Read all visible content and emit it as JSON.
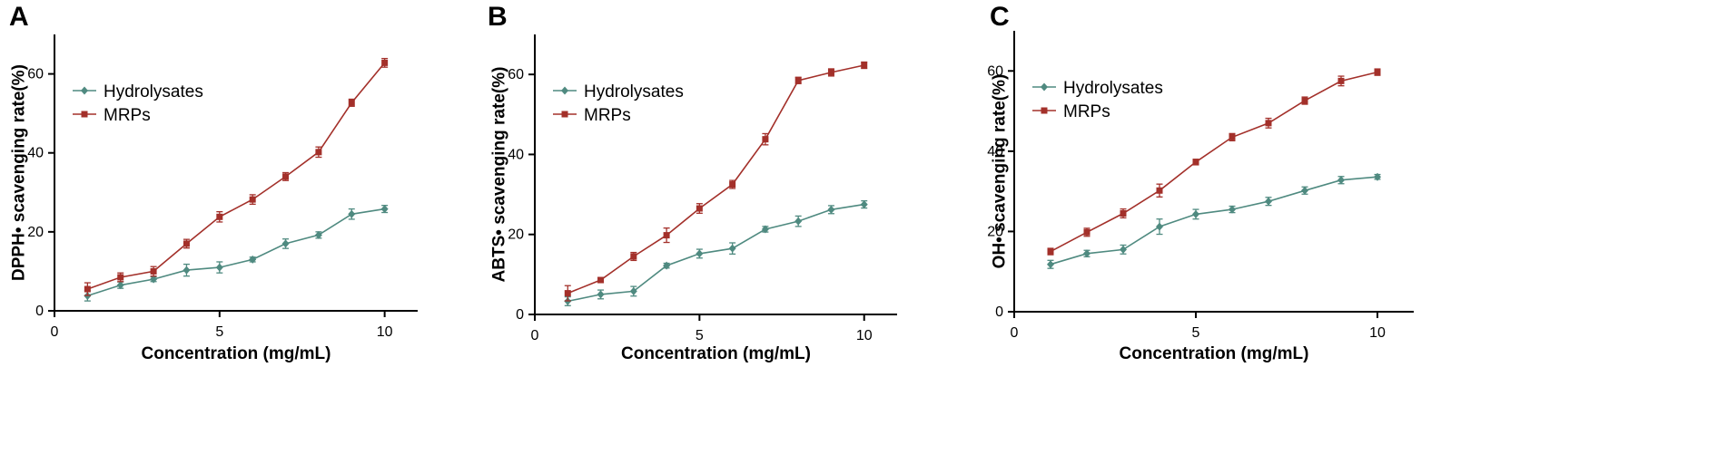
{
  "chart_data": [
    {
      "type": "line",
      "panel": "A",
      "xlabel": "Concentration (mg/mL)",
      "ylabel": "DPPH• scavenging rate(%)",
      "xlim": [
        0,
        11
      ],
      "ylim": [
        0,
        70
      ],
      "xticks": [
        0,
        5,
        10
      ],
      "yticks": [
        0,
        20,
        40,
        60
      ],
      "legend_position": "top-left",
      "x": [
        1,
        2,
        3,
        4,
        5,
        6,
        7,
        8,
        9,
        10
      ],
      "series": [
        {
          "name": "Hydrolysates",
          "marker": "diamond",
          "color": "#4f8a80",
          "values": [
            3.8,
            6.5,
            8.0,
            10.3,
            11.0,
            13.0,
            17.0,
            19.2,
            24.5,
            25.8
          ],
          "errors": [
            1.3,
            0.8,
            0.6,
            1.5,
            1.4,
            0.6,
            1.2,
            0.8,
            1.3,
            0.9
          ]
        },
        {
          "name": "MRPs",
          "marker": "square",
          "color": "#a3302a",
          "values": [
            5.5,
            8.5,
            10.0,
            17.0,
            23.8,
            28.2,
            34.0,
            40.2,
            52.7,
            62.8
          ],
          "errors": [
            1.6,
            1.1,
            1.2,
            1.1,
            1.3,
            1.2,
            1.0,
            1.3,
            0.9,
            1.1
          ]
        }
      ]
    },
    {
      "type": "line",
      "panel": "B",
      "xlabel": "Concentration (mg/mL)",
      "ylabel": "ABTS• scavenging rate(%)",
      "xlim": [
        0,
        11
      ],
      "ylim": [
        0,
        70
      ],
      "xticks": [
        0,
        5,
        10
      ],
      "yticks": [
        0,
        20,
        40,
        60
      ],
      "legend_position": "top-left",
      "x": [
        1,
        2,
        3,
        4,
        5,
        6,
        7,
        8,
        9,
        10
      ],
      "series": [
        {
          "name": "Hydrolysates",
          "marker": "diamond",
          "color": "#4f8a80",
          "values": [
            3.3,
            5.0,
            5.8,
            12.2,
            15.2,
            16.5,
            21.3,
            23.3,
            26.2,
            27.5
          ],
          "errors": [
            1.1,
            1.1,
            1.2,
            0.6,
            1.1,
            1.4,
            0.7,
            1.3,
            1.0,
            0.9
          ]
        },
        {
          "name": "MRPs",
          "marker": "square",
          "color": "#a3302a",
          "values": [
            5.3,
            8.6,
            14.5,
            19.8,
            26.5,
            32.5,
            43.8,
            58.5,
            60.5,
            62.3
          ],
          "errors": [
            1.9,
            0.6,
            1.0,
            1.8,
            1.2,
            1.0,
            1.4,
            0.8,
            0.9,
            0.8
          ]
        }
      ]
    },
    {
      "type": "line",
      "panel": "C",
      "xlabel": "Concentration (mg/mL)",
      "ylabel": "OH• scavenging rate(%)",
      "xlim": [
        0,
        11
      ],
      "ylim": [
        0,
        70
      ],
      "xticks": [
        0,
        5,
        10
      ],
      "yticks": [
        0,
        20,
        40,
        60
      ],
      "legend_position": "top-left",
      "x": [
        1,
        2,
        3,
        4,
        5,
        6,
        7,
        8,
        9,
        10
      ],
      "series": [
        {
          "name": "Hydrolysates",
          "marker": "diamond",
          "color": "#4f8a80",
          "values": [
            11.8,
            14.5,
            15.5,
            21.2,
            24.3,
            25.5,
            27.5,
            30.2,
            32.8,
            33.6
          ],
          "errors": [
            1.0,
            0.8,
            1.1,
            1.9,
            1.2,
            0.8,
            1.0,
            0.9,
            0.9,
            0.6
          ]
        },
        {
          "name": "MRPs",
          "marker": "square",
          "color": "#a3302a",
          "values": [
            15.0,
            19.8,
            24.5,
            30.2,
            37.3,
            43.5,
            47.0,
            52.6,
            57.5,
            59.7
          ],
          "errors": [
            0.8,
            1.0,
            1.1,
            1.6,
            0.7,
            0.9,
            1.2,
            0.9,
            1.2,
            0.8
          ]
        }
      ]
    }
  ]
}
